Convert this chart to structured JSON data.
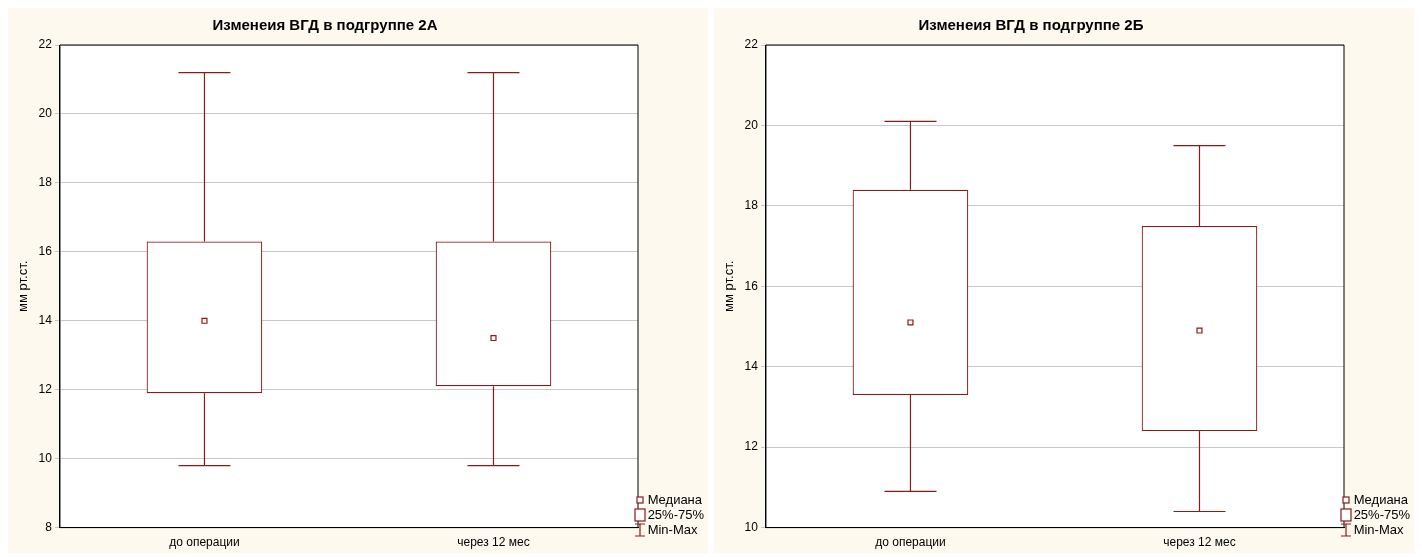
{
  "chart_data": [
    {
      "type": "box",
      "title": "Изменеия ВГД в подгруппе 2А",
      "ylabel": "мм рт.ст.",
      "categories": [
        "до операции",
        "через 12 мес"
      ],
      "color": "#8b1a1a",
      "boxes": [
        {
          "low": 9.8,
          "q1": 11.9,
          "median": 14.0,
          "q3": 16.3,
          "high": 21.2
        },
        {
          "low": 9.8,
          "q1": 12.1,
          "median": 13.5,
          "q3": 16.3,
          "high": 21.2
        }
      ],
      "ylim": [
        8,
        22
      ],
      "yticks": [
        8,
        10,
        12,
        14,
        16,
        18,
        20,
        22
      ],
      "grid": "y",
      "annotations": [
        "Медиана",
        "25%-75%",
        "Min-Max"
      ]
    },
    {
      "type": "box",
      "title": "Изменеия ВГД в подгруппе 2Б",
      "ylabel": "мм рт.ст.",
      "categories": [
        "до операции",
        "через 12 мес"
      ],
      "color": "#8b1a1a",
      "boxes": [
        {
          "low": 10.9,
          "q1": 13.3,
          "median": 15.1,
          "q3": 18.4,
          "high": 20.1
        },
        {
          "low": 10.4,
          "q1": 12.4,
          "median": 14.9,
          "q3": 17.5,
          "high": 19.5
        }
      ],
      "ylim": [
        10,
        22
      ],
      "yticks": [
        10,
        12,
        14,
        16,
        18,
        20,
        22
      ],
      "grid": "y",
      "annotations": [
        "Медиана",
        "25%-75%",
        "Min-Max"
      ]
    }
  ]
}
